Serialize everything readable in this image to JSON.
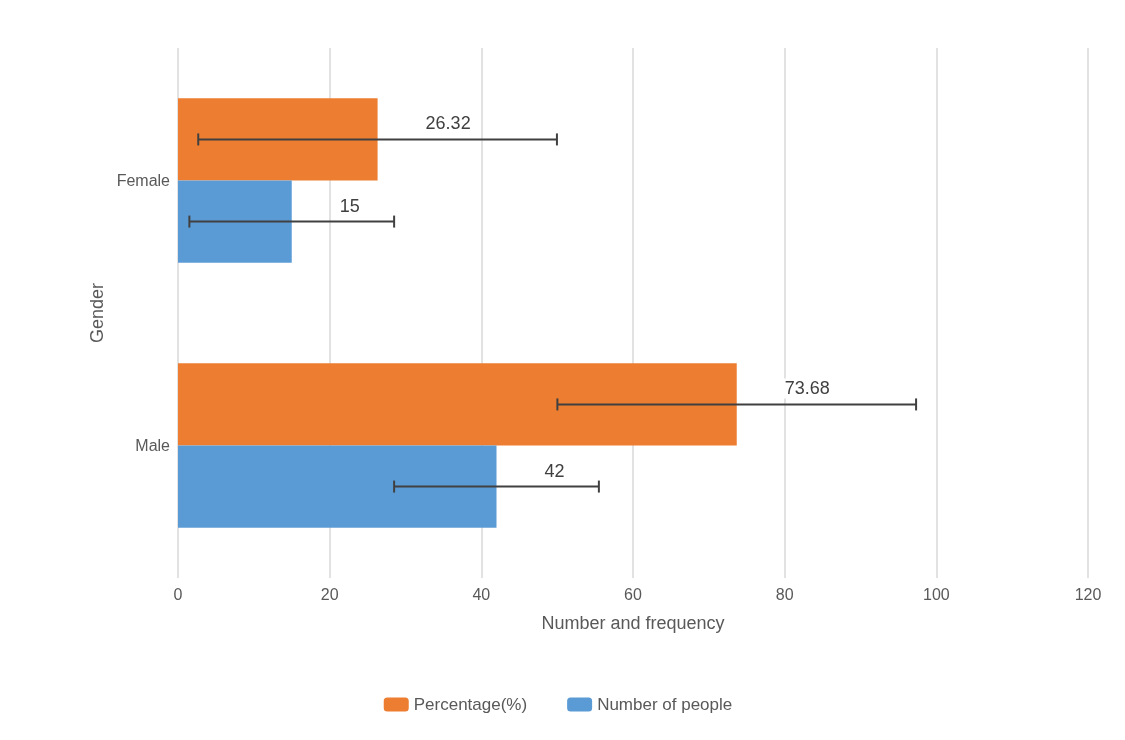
{
  "chart_data": {
    "type": "bar",
    "orientation": "horizontal",
    "categories": [
      "Female",
      "Male"
    ],
    "series": [
      {
        "name": "Percentage(%)",
        "color": "#ed7d31",
        "values": [
          26.32,
          73.68
        ],
        "errors": [
          23.65,
          23.65
        ]
      },
      {
        "name": "Number of people",
        "color": "#5b9bd5",
        "values": [
          15,
          42
        ],
        "errors": [
          13.5,
          13.5
        ]
      }
    ],
    "xlim": [
      0,
      120
    ],
    "xticks": [
      0,
      20,
      40,
      60,
      80,
      100,
      120
    ],
    "xlabel": "Number and frequency",
    "ylabel": "Gender",
    "grid": "x",
    "legend": "bottom",
    "data_labels": true
  }
}
